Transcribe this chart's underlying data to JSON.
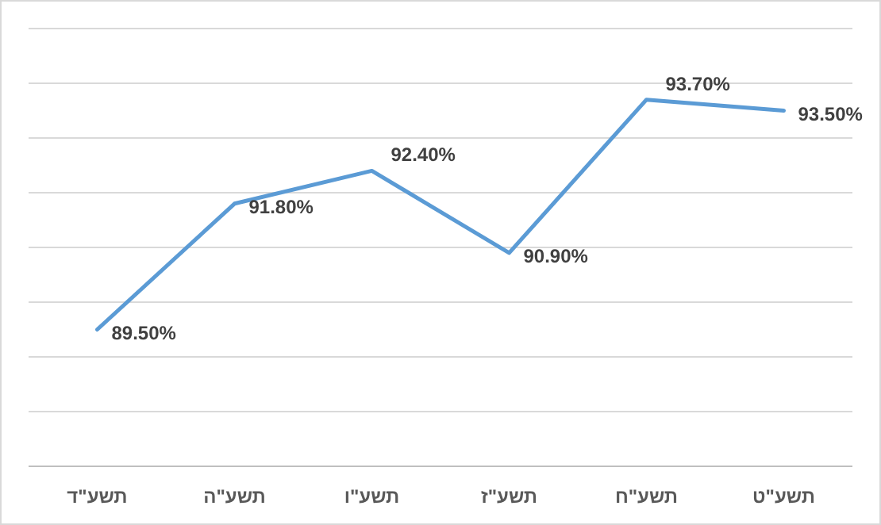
{
  "chart_data": {
    "type": "line",
    "categories": [
      "תשע\"ד",
      "תשע\"ה",
      "תשע\"ו",
      "תשע\"ז",
      "תשע\"ח",
      "תשע\"ט"
    ],
    "series": [
      {
        "color": "#5b9bd5",
        "values": [
          89.5,
          91.8,
          92.4,
          90.9,
          93.7,
          93.5
        ],
        "value_labels": [
          "89.50%",
          "91.80%",
          "92.40%",
          "90.90%",
          "93.70%",
          "93.50%"
        ]
      }
    ],
    "ylim": [
      87,
      95
    ],
    "yticks": [
      {
        "value": 87,
        "label": null
      },
      {
        "value": 88,
        "label": null
      },
      {
        "value": 89,
        "label": null
      },
      {
        "value": 90,
        "label": null
      },
      {
        "value": 91,
        "label": null
      },
      {
        "value": 92,
        "label": null
      },
      {
        "value": 93,
        "label": null
      },
      {
        "value": 94,
        "label": null
      },
      {
        "value": 95,
        "label": null
      }
    ],
    "grid": "y",
    "tick_labels": "x",
    "marker": "none",
    "line_style": "solid"
  }
}
